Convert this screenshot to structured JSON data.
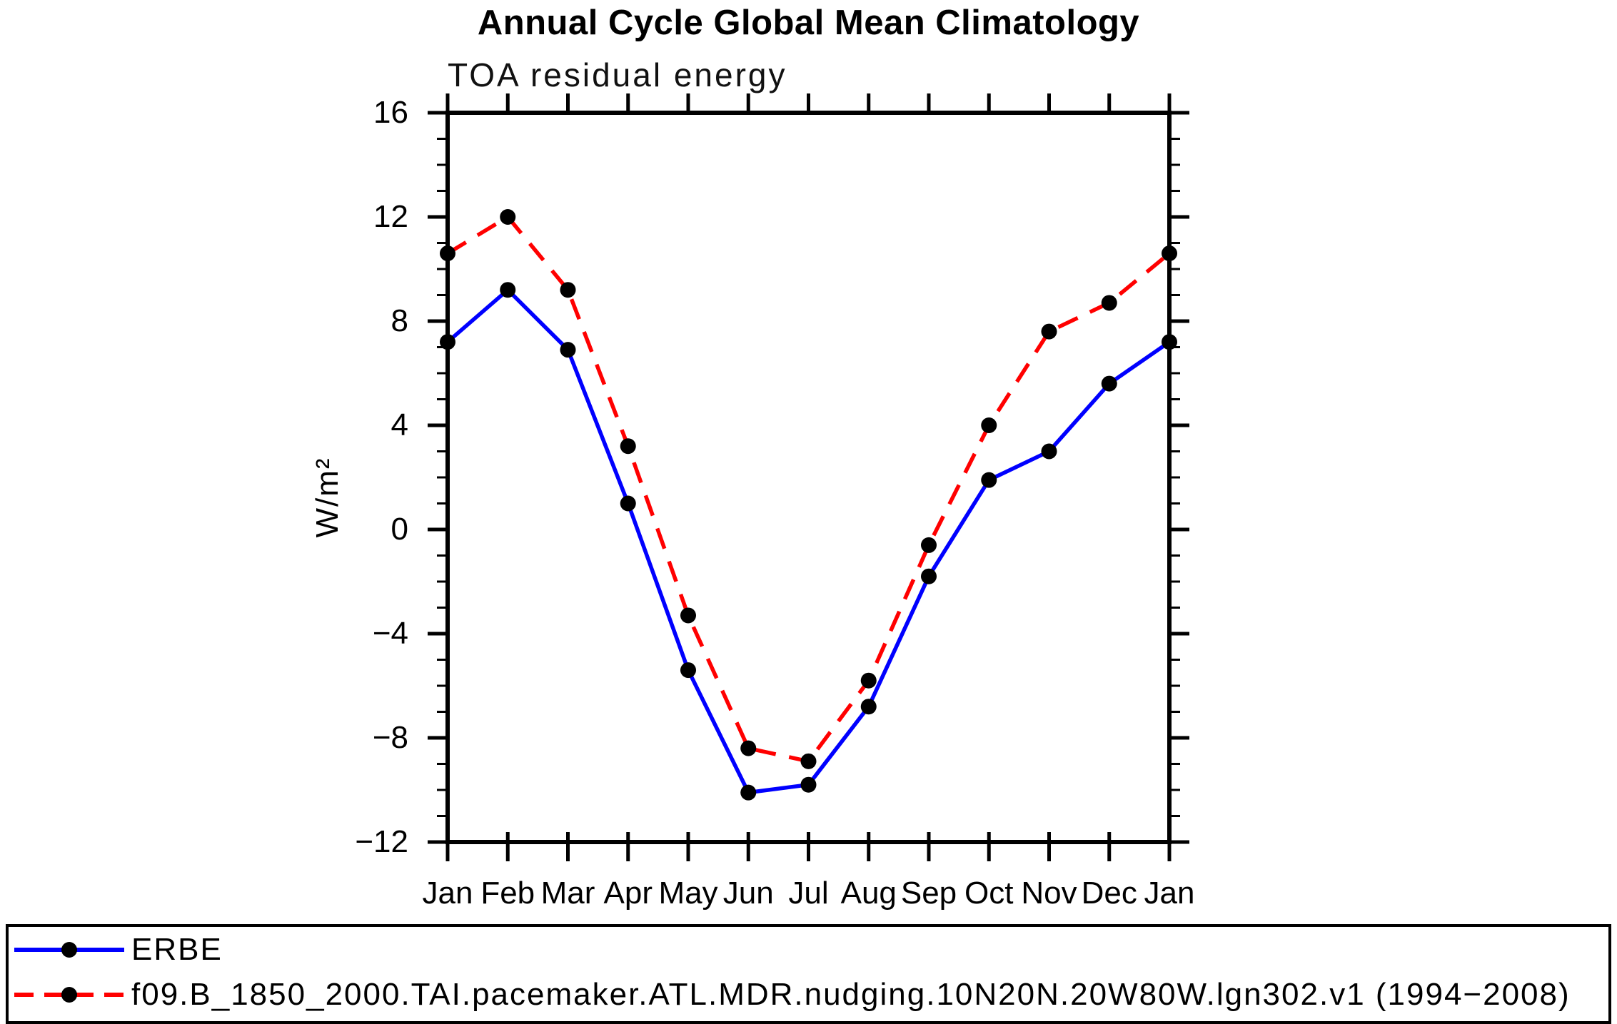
{
  "header": {
    "title": "Annual Cycle Global Mean Climatology",
    "subtitle": "TOA residual energy"
  },
  "axes": {
    "ylabel": "W/m²",
    "yticks": [
      {
        "label": "16",
        "value": 16
      },
      {
        "label": "12",
        "value": 12
      },
      {
        "label": "8",
        "value": 8
      },
      {
        "label": "4",
        "value": 4
      },
      {
        "label": "0",
        "value": 0
      },
      {
        "label": "−4",
        "value": -4
      },
      {
        "label": "−8",
        "value": -8
      },
      {
        "label": "−12",
        "value": -12
      }
    ]
  },
  "chart_data": {
    "type": "line",
    "title": "Annual Cycle Global Mean Climatology",
    "subtitle": "TOA residual energy",
    "xlabel": "",
    "ylabel": "W/m²",
    "categories": [
      "Jan",
      "Feb",
      "Mar",
      "Apr",
      "May",
      "Jun",
      "Jul",
      "Aug",
      "Sep",
      "Oct",
      "Nov",
      "Dec",
      "Jan"
    ],
    "ylim": [
      -12,
      16
    ],
    "ytick_major_step": 4,
    "ytick_minor_step": 1,
    "grid": false,
    "legend_position": "bottom-outside-framed-box",
    "series": [
      {
        "name": "ERBE",
        "color": "#0000ff",
        "line_style": "solid",
        "marker": "filled-circle",
        "marker_color": "#000000",
        "values": [
          7.2,
          9.2,
          6.9,
          1.0,
          -5.4,
          -10.1,
          -9.8,
          -6.8,
          -1.8,
          1.9,
          3.0,
          5.6,
          7.2
        ]
      },
      {
        "name": "f09.B_1850_2000.TAI.pacemaker.ATL.MDR.nudging.10N20N.20W80W.lgn302.v1 (1994−2008)",
        "color": "#ff0000",
        "line_style": "dashed",
        "marker": "filled-circle",
        "marker_color": "#000000",
        "values": [
          10.6,
          12.0,
          9.2,
          3.2,
          -3.3,
          -8.4,
          -8.9,
          -5.8,
          -0.6,
          4.0,
          7.6,
          8.7,
          10.6
        ]
      }
    ]
  }
}
